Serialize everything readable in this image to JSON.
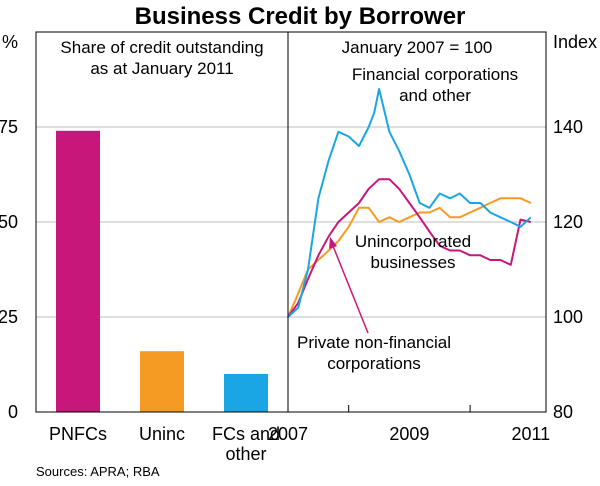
{
  "title": "Business Credit by Borrower",
  "source": "Sources: APRA; RBA",
  "colors": {
    "pnfc": "#c8177a",
    "unincorporated": "#f59a23",
    "financial": "#1aa6e4",
    "frame": "#000000"
  },
  "chart_data": [
    {
      "type": "bar",
      "subtitle_lines": [
        "Share of credit outstanding",
        "as at January 2011"
      ],
      "ylabel": "%",
      "ylim": [
        0,
        100
      ],
      "yticks": [
        0,
        25,
        50,
        75
      ],
      "categories": [
        {
          "lines": [
            "PNFCs"
          ]
        },
        {
          "lines": [
            "Uninc"
          ]
        },
        {
          "lines": [
            "FCs and",
            "other"
          ]
        }
      ],
      "values": [
        74,
        16,
        10
      ],
      "bar_colors": [
        "#c8177a",
        "#f59a23",
        "#1aa6e4"
      ]
    },
    {
      "type": "line",
      "subtitle": "January 2007 = 100",
      "ylabel": "Index",
      "ylim": [
        80,
        160
      ],
      "yticks": [
        80,
        100,
        120,
        140
      ],
      "xlim": [
        2007.0,
        2011.25
      ],
      "xticks": [
        2007,
        2009,
        2011
      ],
      "series": [
        {
          "name": "Private non-financial corporations",
          "color": "#c8177a",
          "x": [
            2007.0,
            2007.17,
            2007.33,
            2007.5,
            2007.67,
            2007.83,
            2008.0,
            2008.17,
            2008.33,
            2008.5,
            2008.67,
            2008.83,
            2009.0,
            2009.17,
            2009.33,
            2009.5,
            2009.67,
            2009.83,
            2010.0,
            2010.17,
            2010.33,
            2010.5,
            2010.67,
            2010.83,
            2011.0
          ],
          "values": [
            100,
            103,
            108,
            113,
            117,
            120,
            122,
            124,
            127,
            129,
            129,
            127,
            124,
            121,
            118,
            115,
            114,
            114,
            113,
            113,
            112,
            112,
            111,
            120.5,
            120
          ]
        },
        {
          "name": "Unincorporated businesses",
          "color": "#f59a23",
          "x": [
            2007.0,
            2007.17,
            2007.33,
            2007.5,
            2007.67,
            2007.83,
            2008.0,
            2008.17,
            2008.33,
            2008.5,
            2008.67,
            2008.83,
            2009.0,
            2009.17,
            2009.33,
            2009.5,
            2009.67,
            2009.83,
            2010.0,
            2010.17,
            2010.33,
            2010.5,
            2010.67,
            2010.83,
            2011.0
          ],
          "values": [
            100,
            105,
            110,
            112,
            114,
            116,
            119,
            123,
            123,
            120,
            121,
            120,
            121,
            122,
            122,
            123,
            121,
            121,
            122,
            123,
            124,
            125,
            125,
            125,
            124
          ]
        },
        {
          "name": "Financial corporations and other",
          "color": "#1aa6e4",
          "x": [
            2007.0,
            2007.17,
            2007.33,
            2007.5,
            2007.67,
            2007.83,
            2008.0,
            2008.17,
            2008.33,
            2008.42,
            2008.5,
            2008.67,
            2008.83,
            2009.0,
            2009.17,
            2009.33,
            2009.5,
            2009.67,
            2009.83,
            2010.0,
            2010.17,
            2010.33,
            2010.5,
            2010.67,
            2010.83,
            2011.0
          ],
          "values": [
            100,
            102,
            110,
            125,
            133,
            139,
            138,
            136,
            140,
            143,
            148,
            139,
            135,
            130,
            124,
            123,
            126,
            125,
            126,
            124,
            124,
            122,
            121,
            120,
            119,
            121
          ]
        }
      ],
      "annotations": [
        {
          "series": "financial",
          "lines": [
            "Financial corporations",
            "and other"
          ]
        },
        {
          "series": "unincorporated",
          "lines": [
            "Unincorporated",
            "businesses"
          ]
        },
        {
          "series": "pnfc",
          "lines": [
            "Private non-financial",
            "corporations"
          ]
        }
      ]
    }
  ]
}
